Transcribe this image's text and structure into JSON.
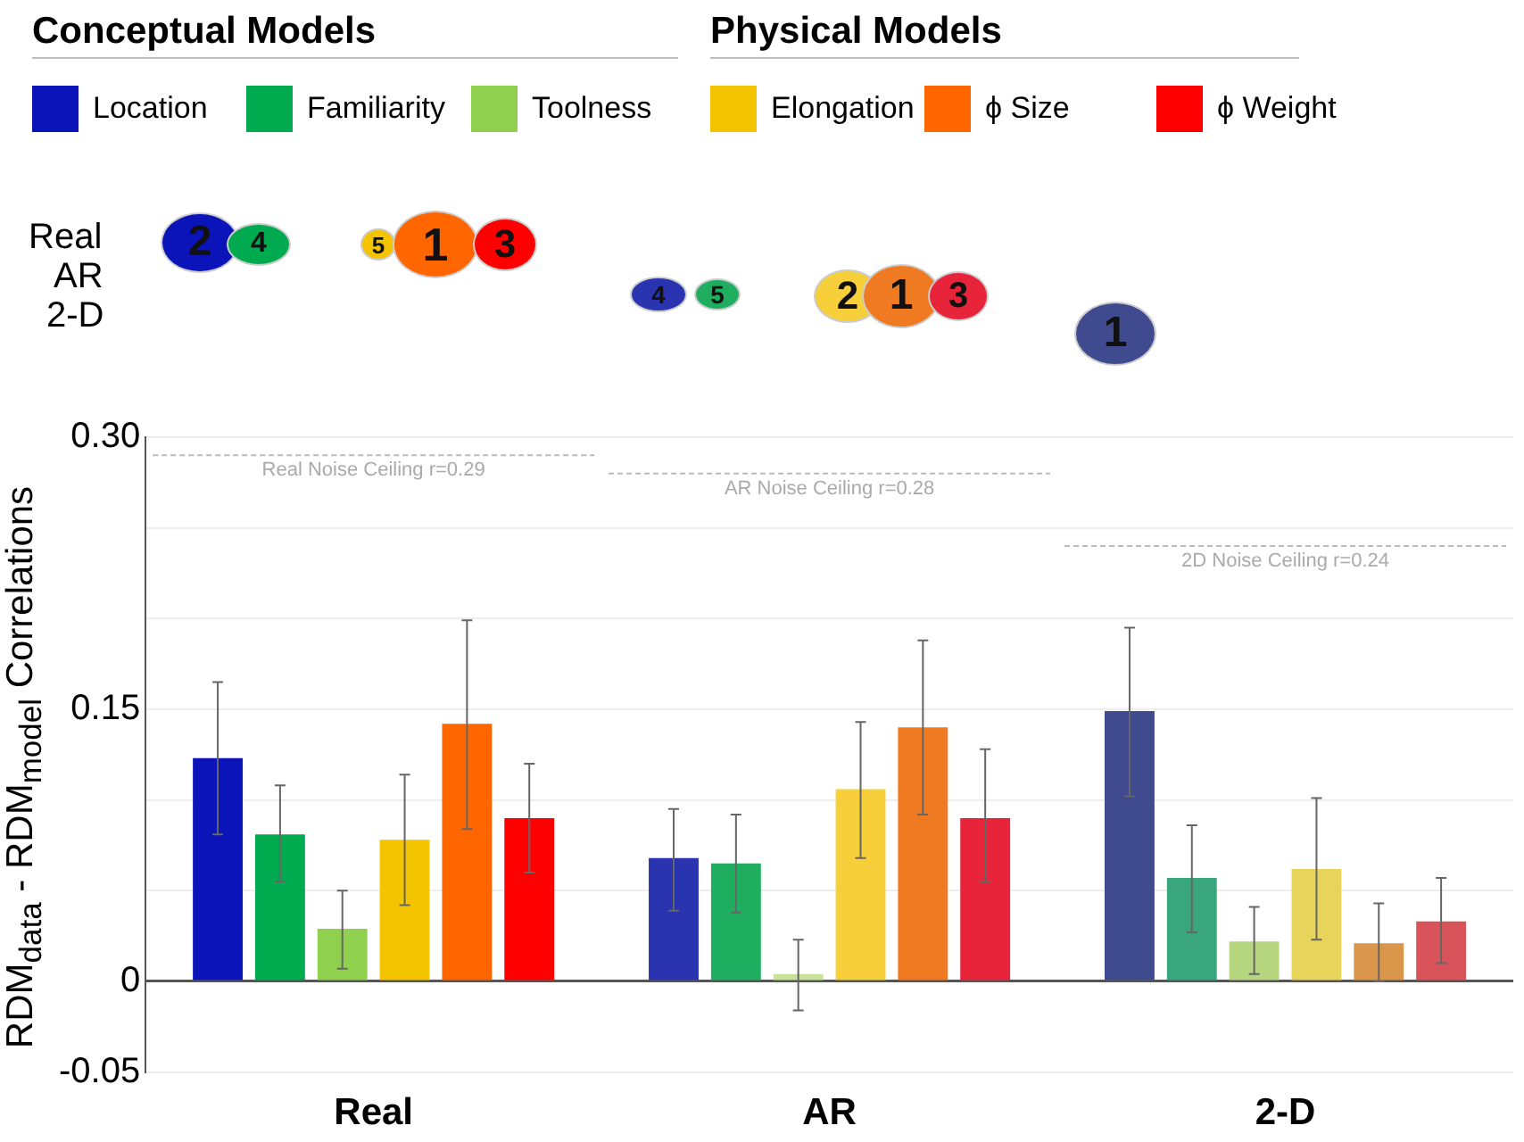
{
  "chart_data": {
    "type": "bar",
    "ylabel": "RDM$_{data}$ - RDM$_{model}$ Correlations",
    "categories": [
      "Real",
      "AR",
      "2-D"
    ],
    "series": [
      {
        "name": "Location",
        "color": "#0a14b8",
        "colors": [
          "#0a14b8",
          "#2a33b0",
          "#3f4a8f"
        ],
        "values": [
          0.123,
          0.068,
          0.149
        ],
        "errors": [
          [
            0.081,
            0.165
          ],
          [
            0.039,
            0.095
          ],
          [
            0.102,
            0.195
          ]
        ]
      },
      {
        "name": "Familiarity",
        "color": "#00aa4f",
        "colors": [
          "#00aa4f",
          "#1fae5f",
          "#3aa67d"
        ],
        "values": [
          0.081,
          0.065,
          0.057
        ],
        "errors": [
          [
            0.055,
            0.108
          ],
          [
            0.038,
            0.092
          ],
          [
            0.027,
            0.086
          ]
        ]
      },
      {
        "name": "Toolness",
        "color": "#8fd14f",
        "colors": [
          "#8fd14f",
          "#c9e29a",
          "#b5d67f"
        ],
        "values": [
          0.029,
          0.004,
          0.022
        ],
        "errors": [
          [
            0.007,
            0.05
          ],
          [
            -0.016,
            0.023
          ],
          [
            0.004,
            0.041
          ]
        ]
      },
      {
        "name": "Elongation",
        "color": "#f5c400",
        "colors": [
          "#f5c400",
          "#f7cf3a",
          "#e8d45a"
        ],
        "values": [
          0.078,
          0.106,
          0.062
        ],
        "errors": [
          [
            0.042,
            0.114
          ],
          [
            0.068,
            0.143
          ],
          [
            0.023,
            0.101
          ]
        ]
      },
      {
        "name": "ϕ Size",
        "color": "#ff6600",
        "colors": [
          "#ff6600",
          "#f07a22",
          "#d9964a"
        ],
        "values": [
          0.142,
          0.14,
          0.021
        ],
        "errors": [
          [
            0.084,
            0.199
          ],
          [
            0.092,
            0.188
          ],
          [
            0,
            0.043
          ]
        ]
      },
      {
        "name": "ϕ Weight",
        "color": "#ff0000",
        "colors": [
          "#ff0000",
          "#e8243a",
          "#d9545a"
        ],
        "values": [
          0.09,
          0.09,
          0.033
        ],
        "errors": [
          [
            0.06,
            0.12
          ],
          [
            0.055,
            0.128
          ],
          [
            0.01,
            0.057
          ]
        ]
      }
    ],
    "ylim": [
      -0.05,
      0.3
    ],
    "yticks": [
      -0.05,
      0,
      {
        "value": 0.05,
        "label": null
      },
      {
        "value": 0.1,
        "label": null
      },
      0.15,
      {
        "value": 0.2,
        "label": null
      },
      {
        "value": 0.25,
        "label": null
      },
      {
        "value": 0.3,
        "label": "0.30"
      }
    ],
    "grid": "y",
    "legend": "top",
    "ref_lines": [
      {
        "axis": "y",
        "value": 0.29,
        "label": "Real Noise Ceiling r=0.29",
        "color": "#bbbbbb",
        "line_style": "dashed"
      },
      {
        "axis": "y",
        "value": 0.28,
        "label": "AR Noise Ceiling r=0.28",
        "color": "#bbbbbb",
        "line_style": "dashed"
      },
      {
        "axis": "y",
        "value": 0.24,
        "label": "2D Noise Ceiling r=0.24",
        "color": "#bbbbbb",
        "line_style": "dashed"
      }
    ],
    "annotations": [
      "Conceptual Models",
      "Physical Models",
      "Real",
      "AR",
      "2-D",
      "2",
      "4",
      "5",
      "1",
      "3",
      "4",
      "5",
      "2",
      "1",
      "3",
      "1"
    ]
  }
}
